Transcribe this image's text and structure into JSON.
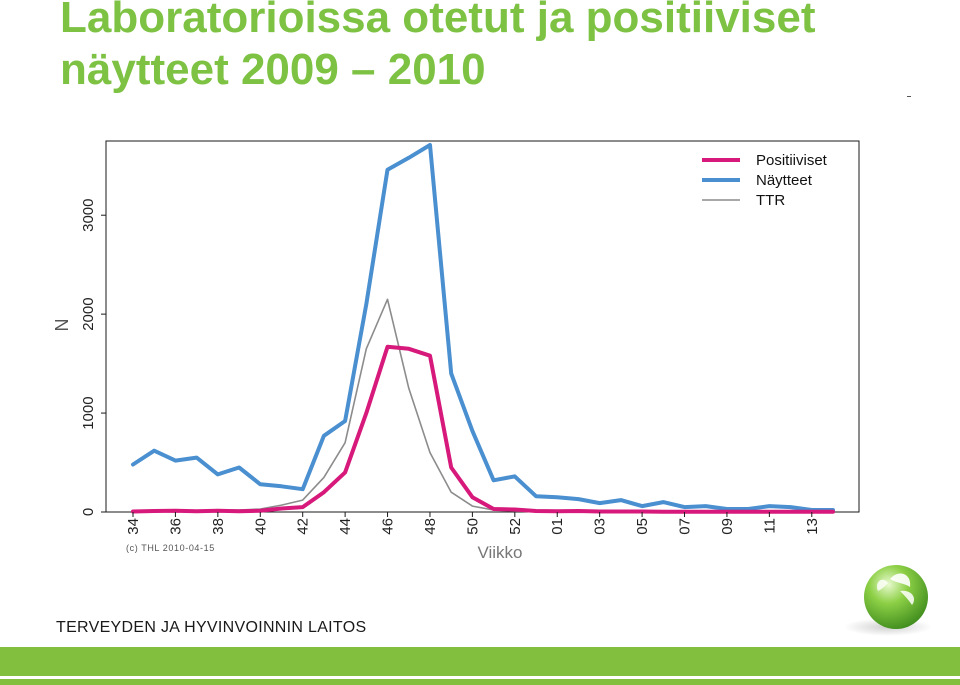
{
  "slide": {
    "title_line1": "Laboratorioissa otetut ja positiiviset",
    "title_line2": "näytteet 2009 – 2010",
    "organization": "TERVEYDEN JA HYVINVOINNIN LAITOS",
    "copyright": "(c) THL  2010-04-15",
    "title_color": "#7dc243",
    "footer_color": "#82bf3f"
  },
  "chart_data": {
    "type": "line",
    "xlabel": "Viikko",
    "ylabel": "N",
    "ylim": [
      0,
      3750
    ],
    "yticks": [
      0,
      1000,
      2000,
      3000
    ],
    "categories": [
      "34",
      "35",
      "36",
      "37",
      "38",
      "39",
      "40",
      "41",
      "42",
      "43",
      "44",
      "45",
      "46",
      "47",
      "48",
      "49",
      "50",
      "51",
      "52",
      "53",
      "01",
      "02",
      "03",
      "04",
      "05",
      "06",
      "07",
      "08",
      "09",
      "10",
      "11",
      "12",
      "13",
      "14"
    ],
    "xtick_labels": [
      "34",
      "36",
      "38",
      "40",
      "42",
      "44",
      "46",
      "48",
      "50",
      "52",
      "01",
      "03",
      "05",
      "07",
      "09",
      "11",
      "13"
    ],
    "legend_position": "top-right",
    "series": [
      {
        "name": "Positiiviset",
        "color": "#d6197b",
        "width": 4,
        "values": [
          5,
          10,
          12,
          8,
          12,
          8,
          12,
          35,
          50,
          200,
          400,
          1000,
          1670,
          1650,
          1580,
          450,
          150,
          30,
          25,
          10,
          8,
          10,
          5,
          5,
          5,
          3,
          3,
          3,
          3,
          3,
          3,
          3,
          3,
          3
        ]
      },
      {
        "name": "Näytteet",
        "color": "#4a8fd0",
        "width": 4,
        "values": [
          480,
          620,
          520,
          550,
          380,
          450,
          280,
          260,
          230,
          770,
          920,
          2100,
          3460,
          3580,
          3710,
          1400,
          820,
          320,
          360,
          160,
          150,
          130,
          90,
          120,
          60,
          100,
          50,
          60,
          30,
          30,
          60,
          50,
          20,
          20
        ]
      },
      {
        "name": "TTR",
        "color": "#8c8c8c",
        "width": 1.6,
        "values": [
          10,
          15,
          20,
          15,
          20,
          20,
          30,
          70,
          120,
          350,
          700,
          1650,
          2150,
          1250,
          600,
          200,
          60,
          20,
          10,
          5,
          5,
          5,
          5,
          5,
          5,
          5,
          5,
          5,
          5,
          5,
          5,
          5,
          5,
          5
        ]
      }
    ]
  }
}
